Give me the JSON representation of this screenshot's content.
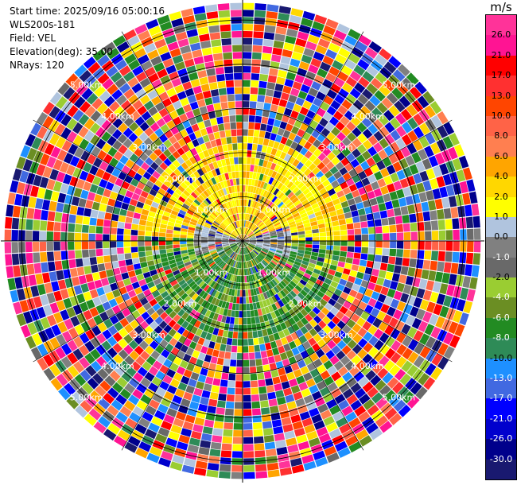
{
  "header": {
    "start_time": "Start time: 2025/09/16 05:00:16",
    "station": "WLS200s-181",
    "field": "Field: VEL",
    "elevation": "Elevation(deg): 35.00",
    "nrays": "NRays: 120"
  },
  "colorbar": {
    "unit": "m/s",
    "ticks": [
      "26.0",
      "21.0",
      "17.0",
      "13.0",
      "10.0",
      "8.0",
      "6.0",
      "4.0",
      "2.0",
      "1.0",
      "0.0",
      "-1.0",
      "-2.0",
      "-4.0",
      "-6.0",
      "-8.0",
      "-10.0",
      "-13.0",
      "-17.0",
      "-21.0",
      "-26.0",
      "-30.0"
    ],
    "colors": [
      "#ff3399",
      "#ff1493",
      "#ff0000",
      "#ff3030",
      "#ff4500",
      "#ff6347",
      "#ff7f50",
      "#ffa500",
      "#ffd700",
      "#ffff00",
      "#b0c4de",
      "#808080",
      "#696969",
      "#9acd32",
      "#6b8e23",
      "#228b22",
      "#2e8b57",
      "#1e90ff",
      "#4169e1",
      "#0000ff",
      "#0000cd",
      "#00008b",
      "#191970"
    ]
  },
  "chart_data": {
    "type": "ppi",
    "field": "VEL",
    "nrays": 120,
    "elevation_deg": 35.0,
    "range_ring_labels": [
      "1.00km",
      "2.00km",
      "3.00km",
      "4.00km",
      "5.00km"
    ],
    "max_range_km": 5.4,
    "colorscale_unit": "m/s",
    "colorscale_range": [
      -30.0,
      30.0
    ]
  }
}
